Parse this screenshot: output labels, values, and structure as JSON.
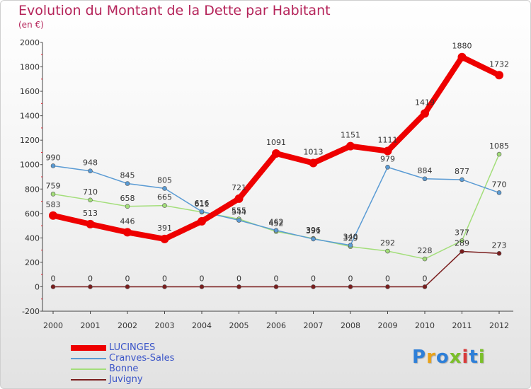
{
  "title": "Evolution du Montant de la Dette par Habitant",
  "subtitle": "(en €)",
  "logo": {
    "text": "Proxiti",
    "letter_colors": [
      "#2e7fd8",
      "#e8a21a",
      "#2e7fd8",
      "#7bbf2a",
      "#d83a3a",
      "#2e7fd8",
      "#7bbf2a"
    ]
  },
  "chart_data": {
    "type": "line",
    "x": [
      "2000",
      "2001",
      "2002",
      "2003",
      "2004",
      "2005",
      "2006",
      "2007",
      "2008",
      "2009",
      "2010",
      "2011",
      "2012"
    ],
    "ylim": [
      -200,
      2000
    ],
    "yticks": [
      "-200",
      "0",
      "200",
      "400",
      "600",
      "800",
      "1000",
      "1200",
      "1400",
      "1600",
      "1800",
      "2000"
    ],
    "grid": false,
    "legend": "bottom-left",
    "series": [
      {
        "name": "LUCINGES",
        "color": "#ee0000",
        "width": 8,
        "marker": 6,
        "values": [
          583,
          513,
          446,
          391,
          536,
          721,
          1091,
          1013,
          1151,
          1111,
          1419,
          1880,
          1732
        ],
        "labels": [
          "583",
          "513",
          "446",
          "391",
          "",
          "721",
          "1091",
          "1013",
          "1151",
          "1111",
          "1419",
          "1880",
          "1732"
        ]
      },
      {
        "name": "Cranves-Sales",
        "color": "#5a9bd4",
        "width": 1.5,
        "marker": 3,
        "values": [
          990,
          948,
          845,
          805,
          616,
          544,
          462,
          391,
          340,
          979,
          884,
          877,
          770
        ],
        "labels": [
          "990",
          "948",
          "845",
          "805",
          "616",
          "544",
          "462",
          "391",
          "340",
          "979",
          "884",
          "877",
          "770"
        ]
      },
      {
        "name": "Bonne",
        "color": "#a3de7a",
        "width": 1.5,
        "marker": 3,
        "values": [
          759,
          710,
          658,
          665,
          611,
          555,
          452,
          396,
          329,
          292,
          228,
          377,
          1085
        ],
        "labels": [
          "759",
          "710",
          "658",
          "665",
          "611",
          "555",
          "452",
          "396",
          "329",
          "292",
          "228",
          "377",
          "1085"
        ]
      },
      {
        "name": "Juvigny",
        "color": "#7a1d1d",
        "width": 1.5,
        "marker": 3,
        "values": [
          0,
          0,
          0,
          0,
          0,
          0,
          0,
          0,
          0,
          0,
          0,
          289,
          273
        ],
        "labels": [
          "0",
          "0",
          "0",
          "0",
          "0",
          "0",
          "0",
          "0",
          "0",
          "0",
          "0",
          "289",
          "273"
        ]
      }
    ]
  }
}
